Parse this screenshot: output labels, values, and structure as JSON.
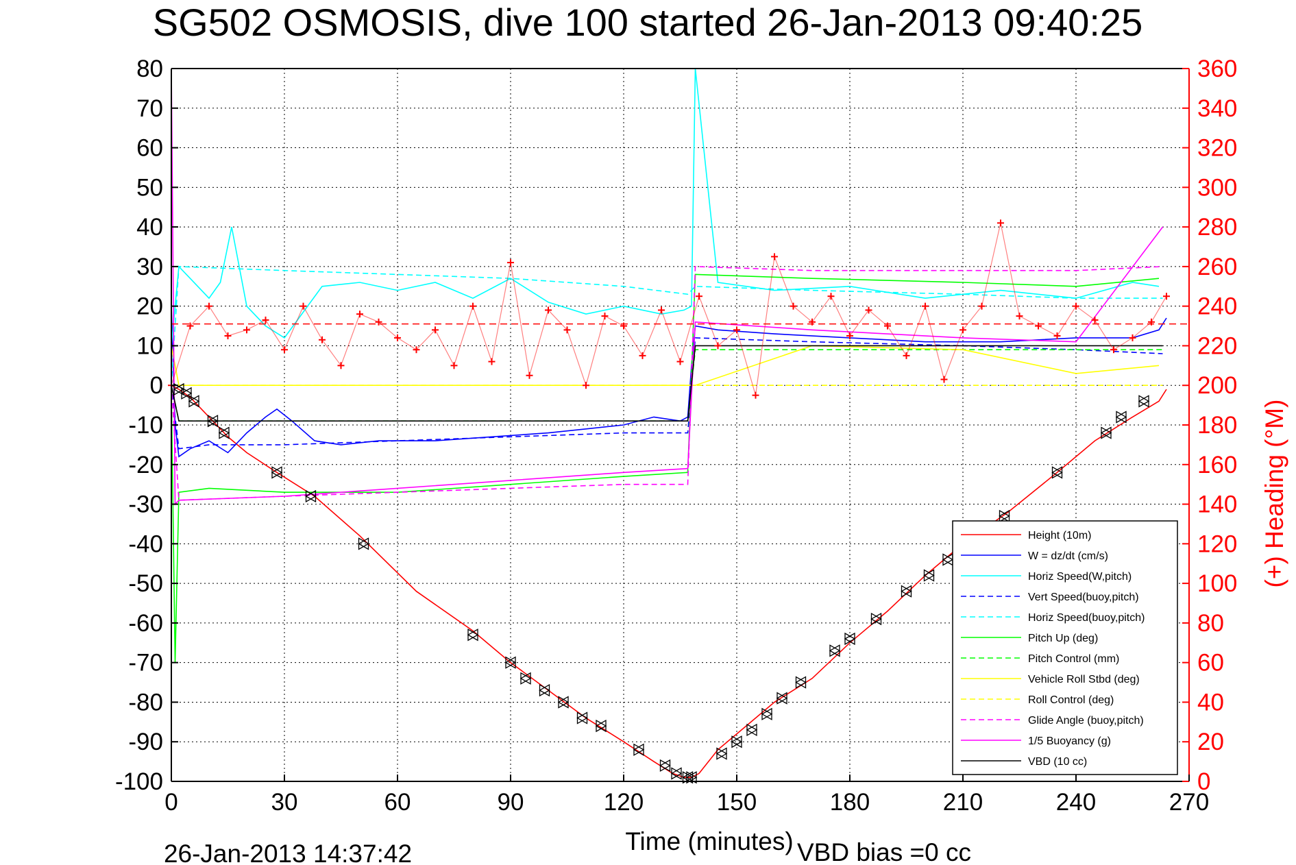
{
  "title": "SG502 OSMOSIS, dive 100 started 26-Jan-2013 09:40:25",
  "footer_left": "26-Jan-2013 14:37:42",
  "footer_right": "VBD bias =0 cc",
  "colors": {
    "height": "#ff0000",
    "w": "#0000ff",
    "horiz": "#00ffff",
    "pitch": "#00ff00",
    "roll": "#ffff00",
    "glide": "#ff00ff",
    "vbd": "#000000",
    "heading": "#ff0000"
  },
  "chart_data": {
    "type": "line",
    "title": "SG502 OSMOSIS, dive 100 started 26-Jan-2013 09:40:25",
    "xlabel": "Time (minutes)",
    "ylabel": "",
    "y2label": "(+) Heading (°M)",
    "xlim": [
      0,
      270
    ],
    "ylim": [
      -100,
      80
    ],
    "y2lim": [
      0,
      360
    ],
    "xticks": [
      "0",
      "30",
      "60",
      "90",
      "120",
      "150",
      "180",
      "210",
      "240",
      "270"
    ],
    "yticks": [
      "80",
      "70",
      "60",
      "50",
      "40",
      "30",
      "20",
      "10",
      "0",
      "-10",
      "-20",
      "-30",
      "-40",
      "-50",
      "-60",
      "-70",
      "-80",
      "-90",
      "-100"
    ],
    "y2ticks": [
      "360",
      "340",
      "320",
      "300",
      "280",
      "260",
      "240",
      "220",
      "200",
      "180",
      "160",
      "140",
      "120",
      "100",
      "80",
      "60",
      "40",
      "20",
      "0"
    ],
    "grid": true,
    "legend_position": "bottom-right",
    "series": [
      {
        "name": "Height (10m)",
        "color": "#ff0000",
        "dash": "solid",
        "x": [
          0,
          2,
          5,
          10,
          15,
          20,
          28,
          38,
          50,
          65,
          80,
          90,
          100,
          110,
          120,
          128,
          133,
          136,
          138,
          140,
          145,
          150,
          160,
          170,
          180,
          190,
          200,
          210,
          222,
          235,
          245,
          255,
          262,
          264
        ],
        "y": [
          0,
          -1,
          -3,
          -8,
          -13,
          -17,
          -22,
          -28,
          -38,
          -52,
          -62,
          -70,
          -77,
          -84,
          -90,
          -95,
          -98,
          -99,
          -99,
          -98,
          -92,
          -88,
          -80,
          -74,
          -65,
          -57,
          -48,
          -40,
          -32,
          -22,
          -14,
          -8,
          -4,
          -1
        ]
      },
      {
        "name": "W = dz/dt (cm/s)",
        "color": "#0000ff",
        "dash": "solid",
        "x": [
          0,
          1,
          2,
          5,
          10,
          15,
          20,
          25,
          28,
          32,
          38,
          45,
          55,
          70,
          85,
          100,
          110,
          120,
          128,
          135,
          137,
          138,
          139,
          145,
          160,
          180,
          200,
          220,
          240,
          255,
          262,
          264
        ],
        "y": [
          20,
          -10,
          -18,
          -16,
          -14,
          -17,
          -12,
          -8,
          -6,
          -9,
          -14,
          -15,
          -14,
          -14,
          -13,
          -12,
          -11,
          -10,
          -8,
          -9,
          -8,
          5,
          15,
          14,
          13,
          12,
          11,
          11,
          12,
          12,
          14,
          17
        ]
      },
      {
        "name": "Horiz Speed(W,pitch)",
        "color": "#00ffff",
        "dash": "solid",
        "x": [
          0,
          2,
          5,
          10,
          13,
          16,
          20,
          25,
          30,
          40,
          50,
          60,
          70,
          80,
          90,
          100,
          110,
          120,
          130,
          136,
          138,
          139,
          145,
          160,
          180,
          200,
          220,
          240,
          255,
          262
        ],
        "y": [
          10,
          30,
          27,
          22,
          26,
          40,
          20,
          15,
          12,
          25,
          26,
          24,
          26,
          22,
          27,
          21,
          18,
          20,
          18,
          19,
          20,
          80,
          26,
          24,
          25,
          22,
          24,
          22,
          26,
          25
        ]
      },
      {
        "name": "Vert Speed(buoy,pitch)",
        "color": "#0000ff",
        "dash": "dashed",
        "x": [
          0,
          2,
          10,
          30,
          60,
          90,
          120,
          137,
          139,
          170,
          210,
          240,
          263
        ],
        "y": [
          0,
          -16,
          -15,
          -15,
          -14,
          -13,
          -12,
          -12,
          12,
          11,
          10,
          9,
          8
        ]
      },
      {
        "name": "Horiz Speed(buoy,pitch)",
        "color": "#00ffff",
        "dash": "dashed",
        "x": [
          0,
          2,
          30,
          60,
          90,
          120,
          137,
          139,
          170,
          210,
          240,
          263
        ],
        "y": [
          0,
          30,
          29,
          28,
          27,
          25,
          23,
          25,
          24,
          23,
          22,
          22
        ]
      },
      {
        "name": "Pitch Up (deg)",
        "color": "#00ff00",
        "dash": "solid",
        "x": [
          0,
          1,
          2,
          10,
          30,
          60,
          90,
          120,
          137,
          139,
          170,
          210,
          240,
          262
        ],
        "y": [
          0,
          -70,
          -27,
          -26,
          -27,
          -27,
          -25,
          -23,
          -22,
          28,
          27,
          26,
          25,
          27
        ]
      },
      {
        "name": "Pitch Control (mm)",
        "color": "#00ff00",
        "dash": "dashed",
        "x": [
          0,
          2,
          137,
          139,
          263
        ],
        "y": [
          0,
          -9,
          -9,
          9,
          9
        ]
      },
      {
        "name": "Vehicle Roll Stbd (deg)",
        "color": "#ffff00",
        "dash": "solid",
        "x": [
          0,
          2,
          10,
          30,
          60,
          90,
          120,
          137,
          139,
          170,
          210,
          240,
          262
        ],
        "y": [
          10,
          0,
          0,
          0,
          0,
          0,
          0,
          0,
          0,
          10,
          9,
          3,
          5
        ]
      },
      {
        "name": "Roll Control (deg)",
        "color": "#ffff00",
        "dash": "dashed",
        "x": [
          0,
          2,
          137,
          139,
          263
        ],
        "y": [
          0,
          0,
          0,
          0,
          0
        ]
      },
      {
        "name": "Glide Angle (buoy,pitch)",
        "color": "#ff00ff",
        "dash": "dashed",
        "x": [
          0,
          2,
          30,
          60,
          90,
          120,
          137,
          139,
          170,
          210,
          240,
          263
        ],
        "y": [
          0,
          -29,
          -28,
          -27,
          -26,
          -25,
          -25,
          30,
          29,
          29,
          29,
          30
        ]
      },
      {
        "name": "1/5 Buoyancy (g)",
        "color": "#ff00ff",
        "dash": "solid",
        "x": [
          0,
          1,
          2,
          30,
          60,
          90,
          120,
          137,
          139,
          170,
          210,
          240,
          263
        ],
        "y": [
          80,
          -30,
          -29,
          -28,
          -26,
          -24,
          -22,
          -21,
          16,
          14,
          12,
          11,
          40
        ]
      },
      {
        "name": "VBD (10 cc)",
        "color": "#000000",
        "dash": "solid",
        "x": [
          0,
          2,
          137,
          139,
          263
        ],
        "y": [
          0,
          -9,
          -9,
          10,
          10
        ]
      }
    ],
    "heading_series": {
      "axis": "right",
      "color": "#ff0000",
      "marker": "+",
      "reference_line": 231,
      "x": [
        0,
        5,
        10,
        15,
        20,
        25,
        30,
        35,
        40,
        45,
        50,
        55,
        60,
        65,
        70,
        75,
        80,
        85,
        90,
        95,
        100,
        105,
        110,
        115,
        120,
        125,
        130,
        135,
        140,
        145,
        150,
        155,
        160,
        165,
        170,
        175,
        180,
        185,
        190,
        195,
        200,
        205,
        210,
        215,
        220,
        225,
        230,
        235,
        240,
        245,
        250,
        255,
        260,
        264
      ],
      "y": [
        200,
        230,
        240,
        225,
        228,
        233,
        218,
        240,
        223,
        210,
        236,
        232,
        224,
        218,
        228,
        210,
        240,
        212,
        262,
        205,
        238,
        228,
        200,
        235,
        230,
        215,
        238,
        212,
        245,
        220,
        228,
        195,
        265,
        240,
        232,
        245,
        225,
        238,
        230,
        215,
        240,
        203,
        228,
        240,
        282,
        235,
        230,
        225,
        240,
        233,
        218,
        224,
        232,
        245
      ]
    },
    "marker_series": {
      "name": "triangles",
      "color": "#000000",
      "x": [
        2,
        4,
        6,
        11,
        14,
        28,
        37,
        51,
        80,
        90,
        94,
        99,
        104,
        109,
        114,
        124,
        131,
        134,
        137,
        138,
        146,
        150,
        154,
        158,
        162,
        167,
        176,
        180,
        187,
        195,
        201,
        206,
        221,
        235,
        248,
        252,
        258
      ],
      "y": [
        -1,
        -2,
        -4,
        -9,
        -12,
        -22,
        -28,
        -40,
        -63,
        -70,
        -74,
        -77,
        -80,
        -84,
        -86,
        -92,
        -96,
        -98,
        -99,
        -99,
        -93,
        -90,
        -87,
        -83,
        -79,
        -75,
        -67,
        -64,
        -59,
        -52,
        -48,
        -44,
        -33,
        -22,
        -12,
        -8,
        -4
      ]
    }
  }
}
